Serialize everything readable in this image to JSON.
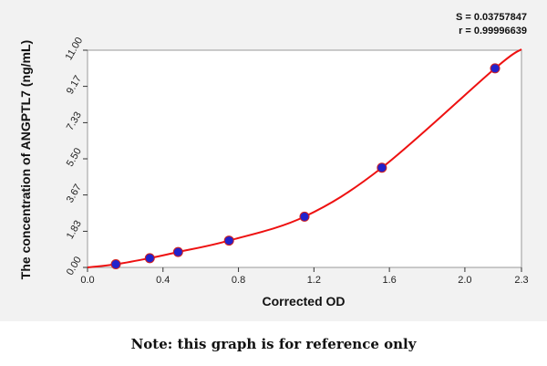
{
  "chart_data": {
    "type": "scatter",
    "title": "",
    "xlabel": "Corrected OD",
    "ylabel": "The concentration of ANGPTL7 (ng/mL)",
    "xlim": [
      0,
      2.3
    ],
    "ylim": [
      0,
      11
    ],
    "x_ticks": [
      0.0,
      0.4,
      0.8,
      1.2,
      1.6,
      2.0,
      2.3
    ],
    "x_tick_labels": [
      "0.0",
      "0.4",
      "0.8",
      "1.2",
      "1.6",
      "2.0",
      "2.3"
    ],
    "y_ticks": [
      0.0,
      1.83,
      3.67,
      5.5,
      7.33,
      9.17,
      11.0
    ],
    "y_tick_labels": [
      "0.00",
      "1.83",
      "3.67",
      "5.50",
      "7.33",
      "9.17",
      "11.00"
    ],
    "grid": false,
    "series": [
      {
        "x": [
          0.15,
          0.33,
          0.48,
          0.75,
          1.15,
          1.56,
          2.16
        ],
        "y": [
          0.16,
          0.47,
          0.78,
          1.36,
          2.57,
          5.05,
          10.08
        ],
        "color": "#2222cc",
        "style": "points"
      }
    ],
    "fit_curve": {
      "color": "#ee1111",
      "x": [
        0.0,
        0.15,
        0.33,
        0.48,
        0.75,
        1.15,
        1.56,
        2.16,
        2.3
      ],
      "y": [
        0.0,
        0.16,
        0.47,
        0.78,
        1.36,
        2.57,
        5.05,
        10.08,
        11.05
      ]
    },
    "annotations": [
      "S = 0.03757847",
      "r = 0.99996639"
    ]
  },
  "note": "Note: this graph is for reference only"
}
